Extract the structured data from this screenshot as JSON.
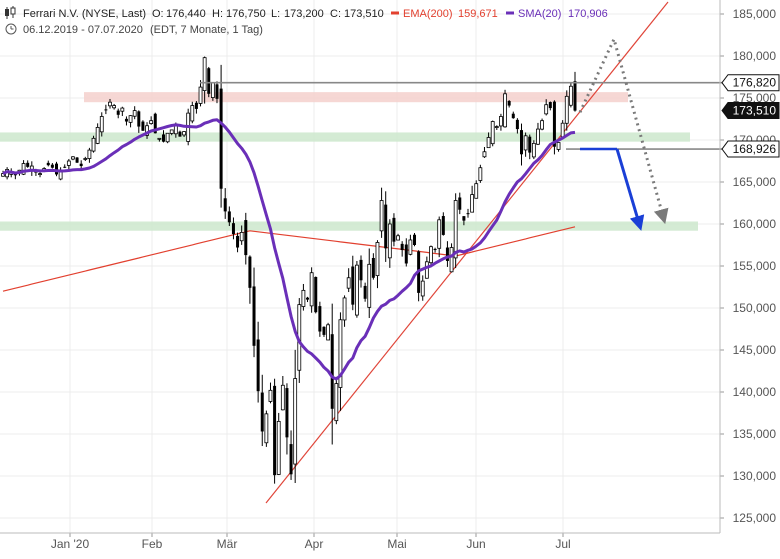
{
  "header": {
    "title": "Ferrari N.V. (NYSE, Last)",
    "ohlc": {
      "o_label": "O:",
      "o": "176,440",
      "h_label": "H:",
      "h": "176,750",
      "l_label": "L:",
      "l": "173,200",
      "c_label": "C:",
      "c": "173,510"
    },
    "ema_label": "EMA(200)",
    "ema_value": "159,671",
    "sma_label": "SMA(20)",
    "sma_value": "170,906",
    "date_range": "06.12.2019 - 07.07.2020",
    "info": "(EDT, 7 Monate, 1 Tag)"
  },
  "colors": {
    "ema": "#e2402f",
    "sma": "#6a2fb8",
    "trendline": "#e0463a",
    "resistance_zone": "#f5d3cf",
    "support_zone": "#cfe9cf",
    "projection_blue": "#1a3fd6",
    "projection_gray": "#7a7a7a",
    "candle": "#000000",
    "axis_text": "#555555"
  },
  "chart_data": {
    "type": "candlestick",
    "x_tick_labels": [
      "Jan '20",
      "Feb",
      "Mär",
      "Apr",
      "Mai",
      "Jun",
      "Jul"
    ],
    "y_ticks": [
      125000,
      130000,
      135000,
      140000,
      145000,
      150000,
      155000,
      160000,
      165000,
      170000,
      175000,
      180000,
      185000
    ],
    "y_tick_labels": [
      "125,000",
      "130,000",
      "135,000",
      "140,000",
      "145,000",
      "150,000",
      "155,000",
      "160,000",
      "165,000",
      "170,000",
      "175,000",
      "180,000",
      "185,000"
    ],
    "ylim": [
      122500,
      186500
    ],
    "grid": true,
    "price_labels": [
      {
        "value": "176,820",
        "price": 176820,
        "style": "outline"
      },
      {
        "value": "173,510",
        "price": 173510,
        "style": "filled"
      },
      {
        "value": "168,926",
        "price": 168926,
        "style": "outline"
      }
    ],
    "zones": [
      {
        "name": "resistance",
        "from": 174500,
        "to": 175700
      },
      {
        "name": "support-upper",
        "from": 169800,
        "to": 170900
      },
      {
        "name": "support-lower",
        "from": 159200,
        "to": 160300
      }
    ],
    "candles_close": [
      166.0,
      166.5,
      166.1,
      165.8,
      166.4,
      167.2,
      166.8,
      166.9,
      166.3,
      166.0,
      166.6,
      167.0,
      166.7,
      165.9,
      166.2,
      166.8,
      167.5,
      168.0,
      167.3,
      166.9,
      167.8,
      168.8,
      170.2,
      171.5,
      172.8,
      173.6,
      174.5,
      174.1,
      173.0,
      173.8,
      172.2,
      172.9,
      173.5,
      171.6,
      171.1,
      171.7,
      172.3,
      170.8,
      170.2,
      169.8,
      170.8,
      171.2,
      171.9,
      170.4,
      171.0,
      173.2,
      174.1,
      173.7,
      176.3,
      179.8,
      175.5,
      176.8,
      174.9,
      164.2,
      161.5,
      160.2,
      158.8,
      157.2,
      159.0,
      156.3,
      152.4,
      145.5,
      140.1,
      135.3,
      137.4,
      140.2,
      130.1,
      136.5,
      140.8,
      134.6,
      130.2,
      141.6,
      150.4,
      152.1,
      151.0,
      154.2,
      149.5,
      147.2,
      146.8,
      148.0,
      138.0,
      141.0,
      148.6,
      151.2,
      153.6,
      150.4,
      155.1,
      153.3,
      151.1,
      155.2,
      153.6,
      157.8,
      162.8,
      157.1,
      160.0,
      157.9,
      158.6,
      156.9,
      155.3,
      158.1,
      157.5,
      151.8,
      153.2,
      155.5,
      157.3,
      156.9,
      160.5,
      158.7,
      155.6,
      157.2,
      162.8,
      161.7,
      160.4,
      161.2,
      163.5,
      164.8,
      166.7,
      168.6,
      170.3,
      172.2,
      171.6,
      172.8,
      175.5,
      174.1,
      172.6,
      171.3,
      168.3,
      170.5,
      168.5,
      169.6,
      171.3,
      172.3,
      174.2,
      173.8,
      169.2,
      169.7,
      172.0,
      175.2,
      176.4,
      173.5
    ],
    "series": [
      {
        "name": "EMA(200)",
        "last": 159.671
      },
      {
        "name": "SMA(20)",
        "last": 170.906
      }
    ]
  }
}
